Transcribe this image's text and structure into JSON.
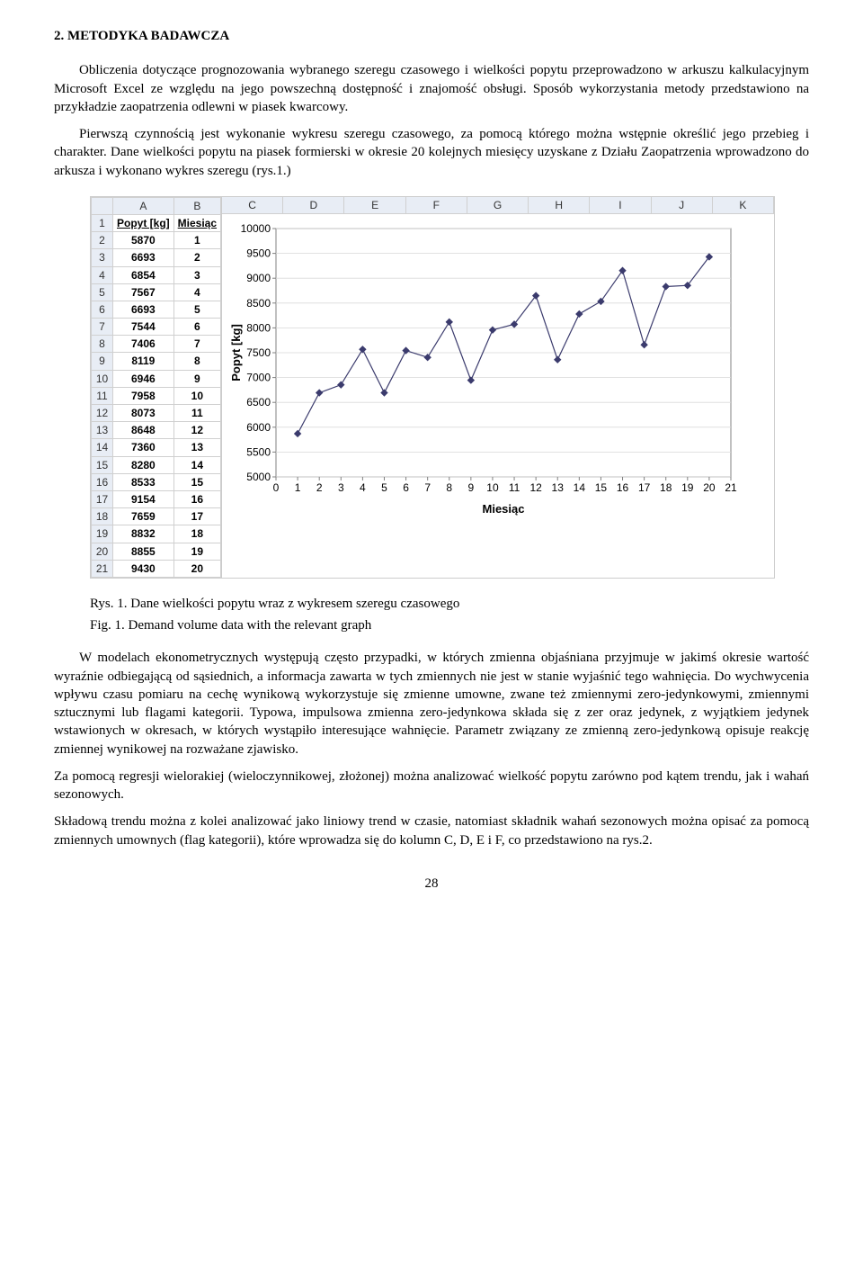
{
  "heading": "2. METODYKA BADAWCZA",
  "para1": "Obliczenia dotyczące prognozowania wybranego szeregu czasowego i wielkości popytu przeprowadzono w arkuszu kalkulacyjnym Microsoft Excel ze względu na jego powszechną dostępność i znajomość obsługi. Sposób wykorzystania metody przedstawiono na przykładzie zaopatrzenia odlewni w piasek kwarcowy.",
  "para2": "Pierwszą czynnością jest wykonanie wykresu szeregu czasowego, za pomocą którego można wstępnie określić jego przebieg i charakter. Dane wielkości popytu na piasek formierski w okresie 20 kolejnych miesięcy uzyskane z Działu Zaopatrzenia wprowadzono do arkusza i wykonano wykres szeregu (rys.1.)",
  "sheet": {
    "column_letters_left": [
      "",
      "A",
      "B"
    ],
    "column_letters_right": [
      "C",
      "D",
      "E",
      "F",
      "G",
      "H",
      "I",
      "J",
      "K"
    ],
    "header_row": {
      "a": "Popyt [kg]",
      "b": "Miesiąc"
    },
    "rows": [
      {
        "r": 2,
        "a": 5870,
        "b": 1
      },
      {
        "r": 3,
        "a": 6693,
        "b": 2
      },
      {
        "r": 4,
        "a": 6854,
        "b": 3
      },
      {
        "r": 5,
        "a": 7567,
        "b": 4
      },
      {
        "r": 6,
        "a": 6693,
        "b": 5
      },
      {
        "r": 7,
        "a": 7544,
        "b": 6
      },
      {
        "r": 8,
        "a": 7406,
        "b": 7
      },
      {
        "r": 9,
        "a": 8119,
        "b": 8
      },
      {
        "r": 10,
        "a": 6946,
        "b": 9
      },
      {
        "r": 11,
        "a": 7958,
        "b": 10
      },
      {
        "r": 12,
        "a": 8073,
        "b": 11
      },
      {
        "r": 13,
        "a": 8648,
        "b": 12
      },
      {
        "r": 14,
        "a": 7360,
        "b": 13
      },
      {
        "r": 15,
        "a": 8280,
        "b": 14
      },
      {
        "r": 16,
        "a": 8533,
        "b": 15
      },
      {
        "r": 17,
        "a": 9154,
        "b": 16
      },
      {
        "r": 18,
        "a": 7659,
        "b": 17
      },
      {
        "r": 19,
        "a": 8832,
        "b": 18
      },
      {
        "r": 20,
        "a": 8855,
        "b": 19
      },
      {
        "r": 21,
        "a": 9430,
        "b": 20
      }
    ]
  },
  "chart": {
    "type": "scatter-line",
    "title": "",
    "xlabel": "Miesiąc",
    "ylabel": "Popyt [kg]",
    "x": [
      1,
      2,
      3,
      4,
      5,
      6,
      7,
      8,
      9,
      10,
      11,
      12,
      13,
      14,
      15,
      16,
      17,
      18,
      19,
      20
    ],
    "y": [
      5870,
      6693,
      6854,
      7567,
      6693,
      7544,
      7406,
      8119,
      6946,
      7958,
      8073,
      8648,
      7360,
      8280,
      8533,
      9154,
      7659,
      8832,
      8855,
      9430
    ],
    "ymin": 5000,
    "ymax": 10000,
    "ystep": 500,
    "xmin": 0,
    "xmax": 21,
    "xstep": 1,
    "marker": "diamond",
    "marker_color": "#3b3b6d",
    "line_color": "#3b3b6d",
    "line_width": 1.2,
    "marker_size": 7,
    "grid_color": "#d9d9d9",
    "axis_color": "#808080",
    "background": "#ffffff",
    "label_fontsize": 12,
    "axlabel_fontsize": 13,
    "axlabel_fontweight": "bold"
  },
  "caption_pl": "Rys. 1. Dane wielkości popytu wraz z wykresem szeregu czasowego",
  "caption_en": "Fig. 1. Demand volume data with the relevant graph",
  "para3": "W modelach ekonometrycznych występują często przypadki, w których zmienna objaśniana przyjmuje w jakimś okresie wartość wyraźnie odbiegającą od sąsiednich, a informacja zawarta w tych zmiennych nie jest w stanie wyjaśnić tego wahnięcia. Do wychwycenia wpływu czasu pomiaru na cechę wynikową wykorzystuje się zmienne umowne, zwane też zmiennymi zero-jedynkowymi, zmiennymi sztucznymi lub flagami kategorii. Typowa, impulsowa zmienna zero-jedynkowa składa się z zer oraz jedynek, z wyjątkiem jedynek wstawionych w okresach, w których wystąpiło interesujące wahnięcie. Parametr związany ze zmienną zero-jedynkową opisuje reakcję zmiennej wynikowej na rozważane zjawisko.",
  "para4": "Za pomocą regresji wielorakiej (wieloczynnikowej, złożonej) można analizować wielkość popytu zarówno pod kątem trendu, jak i wahań sezonowych.",
  "para5": "Składową trendu można z kolei analizować jako liniowy trend w czasie, natomiast składnik wahań sezonowych można opisać za pomocą zmiennych umownych (flag kategorii), które wprowadza się do kolumn C, D, E i F, co przedstawiono na rys.2.",
  "pagenum": "28"
}
